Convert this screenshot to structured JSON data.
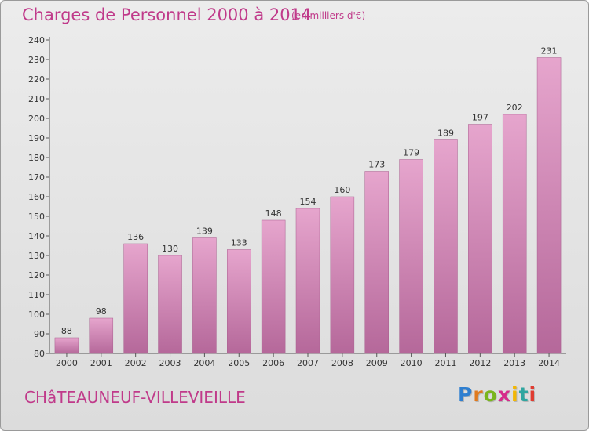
{
  "header": {
    "title": "Charges de Personnel 2000 à 2014",
    "subtitle": "(en milliers d'€)"
  },
  "footer": {
    "commune": "CHâTEAUNEUF-VILLEVIEILLE",
    "logo": {
      "letters": [
        "P",
        "r",
        "o",
        "x",
        "i",
        "t",
        "i"
      ],
      "colors": [
        "#2f7fd0",
        "#e07a1e",
        "#7ab51d",
        "#d62b8b",
        "#f2b705",
        "#2fa6a0",
        "#e03c31"
      ]
    }
  },
  "chart_data": {
    "type": "bar",
    "title": "Charges de Personnel 2000 à 2014",
    "subtitle": "(en milliers d'€)",
    "xlabel": "",
    "ylabel": "",
    "categories": [
      "2000",
      "2001",
      "2002",
      "2003",
      "2004",
      "2005",
      "2006",
      "2007",
      "2008",
      "2009",
      "2010",
      "2011",
      "2012",
      "2013",
      "2014"
    ],
    "values": [
      88,
      98,
      136,
      130,
      139,
      133,
      148,
      154,
      160,
      173,
      179,
      189,
      197,
      202,
      231
    ],
    "ylim": [
      80,
      240
    ],
    "yticks": [
      80,
      90,
      100,
      110,
      120,
      130,
      140,
      150,
      160,
      170,
      180,
      190,
      200,
      210,
      220,
      230,
      240
    ],
    "grid": false,
    "bar_color": "#d98ebb"
  }
}
